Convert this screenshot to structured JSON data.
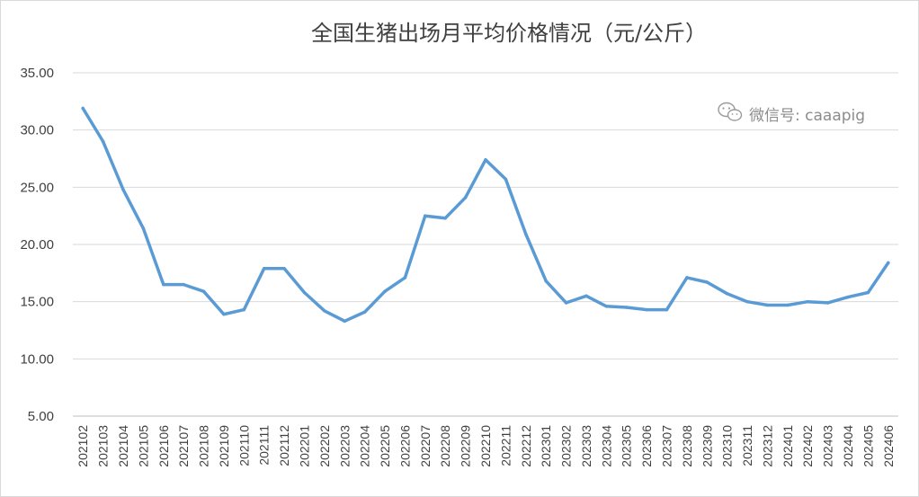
{
  "chart_data": {
    "type": "line",
    "title": "全国生猪出场月平均价格情况（元/公斤）",
    "xlabel": "",
    "ylabel": "",
    "ylim": [
      5,
      35
    ],
    "yticks": [
      "5.00",
      "10.00",
      "15.00",
      "20.00",
      "25.00",
      "30.00",
      "35.00"
    ],
    "grid": "horizontal",
    "legend": "none",
    "categories": [
      "202102",
      "202103",
      "202104",
      "202105",
      "202106",
      "202107",
      "202108",
      "202109",
      "202110",
      "202111",
      "202112",
      "202201",
      "202202",
      "202203",
      "202204",
      "202205",
      "202206",
      "202207",
      "202208",
      "202209",
      "202210",
      "202211",
      "202212",
      "202301",
      "202302",
      "202303",
      "202304",
      "202305",
      "202306",
      "202307",
      "202308",
      "202309",
      "202310",
      "202311",
      "202312",
      "202401",
      "202402",
      "202403",
      "202404",
      "202405",
      "202406"
    ],
    "series": [
      {
        "values": [
          31.9,
          29.0,
          24.8,
          21.4,
          16.5,
          16.5,
          15.9,
          13.9,
          14.3,
          17.9,
          17.9,
          15.8,
          14.2,
          13.3,
          14.1,
          15.9,
          17.1,
          22.5,
          22.3,
          24.1,
          27.4,
          25.7,
          20.9,
          16.8,
          14.9,
          15.5,
          14.6,
          14.5,
          14.3,
          14.3,
          17.1,
          16.7,
          15.7,
          15.0,
          14.7,
          14.7,
          15.0,
          14.9,
          15.4,
          15.8,
          18.4
        ],
        "color": "#5b9bd5"
      }
    ],
    "watermark": "微信号: caaapig"
  }
}
